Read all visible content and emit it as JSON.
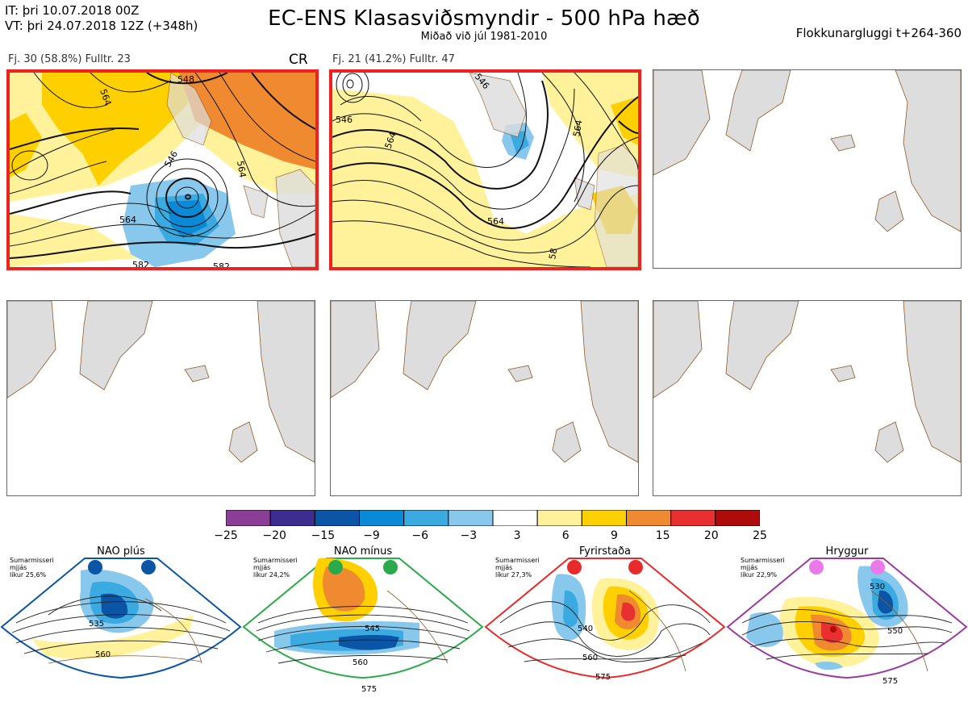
{
  "header": {
    "it_line": "IT: þri 10.07.2018 00Z",
    "vt_line": "VT: þri 24.07.2018 12Z  (+348h)",
    "title": "EC-ENS Klasasviðsmyndir - 500 hPa hæð",
    "subtitle": "Miðað við júl 1981-2010",
    "right_label": "Flokkunargluggi t+264-360"
  },
  "panels": [
    {
      "id": 1,
      "label": "Fj. 30 (58.8%)   Fulltr. 23",
      "tag": "CR",
      "selected": true
    },
    {
      "id": 2,
      "label": "Fj. 21 (41.2%)   Fulltr. 47",
      "tag": "",
      "selected": true
    },
    {
      "id": 3,
      "label": "",
      "tag": "",
      "selected": false
    },
    {
      "id": 4,
      "label": "",
      "tag": "",
      "selected": false
    },
    {
      "id": 5,
      "label": "",
      "tag": "",
      "selected": false
    },
    {
      "id": 6,
      "label": "",
      "tag": "",
      "selected": false
    }
  ],
  "panel1_contours": {
    "labels": [
      "548",
      "564",
      "546",
      "564",
      "564",
      "582",
      "582"
    ]
  },
  "panel2_contours": {
    "labels": [
      "546",
      "546",
      "564",
      "564",
      "564",
      "58"
    ]
  },
  "colorbar": {
    "ticks": [
      "−25",
      "−20",
      "−15",
      "−9",
      "−6",
      "−3",
      "3",
      "6",
      "9",
      "15",
      "20",
      "25"
    ],
    "colors": [
      "#8a3e96",
      "#3d2d8f",
      "#0a55a5",
      "#0a8ad6",
      "#3aaae0",
      "#88c8ec",
      "#ffffff",
      "#fff29a",
      "#ffd000",
      "#f08a30",
      "#e83030",
      "#b00b0b"
    ]
  },
  "regimes": [
    {
      "name": "NAO plús",
      "season": "Sumarmisseri",
      "freq1": "mjjás",
      "freq2": "líkur 25,6%",
      "color": "#0a55a5",
      "labels": [
        "535",
        "560"
      ]
    },
    {
      "name": "NAO mínus",
      "season": "Sumarmisseri",
      "freq1": "mjjás",
      "freq2": "líkur 24,2%",
      "color": "#2aaa4a",
      "labels": [
        "545",
        "560",
        "575"
      ]
    },
    {
      "name": "Fyrirstaða",
      "season": "Sumarmisseri",
      "freq1": "mjjás",
      "freq2": "líkur 27,3%",
      "color": "#e82a2a",
      "labels": [
        "540",
        "560",
        "575"
      ]
    },
    {
      "name": "Hryggur",
      "season": "Sumarmisseri",
      "freq1": "mjjás",
      "freq2": "líkur 22,9%",
      "color": "#ea7aea",
      "labels": [
        "530",
        "550",
        "575"
      ]
    }
  ]
}
